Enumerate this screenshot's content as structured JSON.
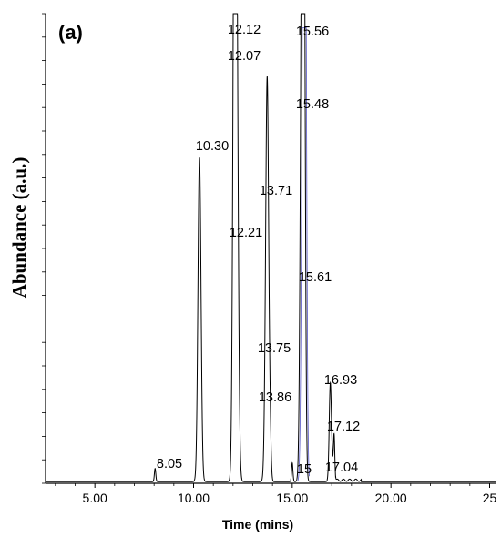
{
  "chart_data": {
    "type": "line",
    "panel_label": "(a)",
    "xlabel": "Time (mins)",
    "ylabel": "Abundance (a.u.)",
    "xlim": [
      2.5,
      25.3
    ],
    "ylim": [
      0,
      100
    ],
    "x_ticks": [
      5,
      10,
      15,
      20,
      25
    ],
    "x_tick_labels": [
      "5.00",
      "10.00",
      "15.00",
      "20.00",
      "25"
    ],
    "y_ticks_visible_labels": false,
    "peaks": [
      {
        "rt": 8.05,
        "label": "8.05",
        "height": 2.8
      },
      {
        "rt": 10.3,
        "label": "10.30",
        "height": 69
      },
      {
        "rt": 12.07,
        "label": "12.07",
        "height": 88
      },
      {
        "rt": 12.12,
        "label": "12.12",
        "height": 92
      },
      {
        "rt": 12.21,
        "label": "12.21",
        "height": 51
      },
      {
        "rt": 13.71,
        "label": "13.71",
        "height": 62
      },
      {
        "rt": 13.75,
        "label": "13.75",
        "height": 27
      },
      {
        "rt": 13.86,
        "label": "13.86",
        "height": 13
      },
      {
        "rt": 15.48,
        "label": "15.48",
        "height": 80
      },
      {
        "rt": 15.56,
        "label": "15.56",
        "height": 94
      },
      {
        "rt": 15.61,
        "label": "15.61",
        "height": 43
      },
      {
        "rt": 15.0,
        "label": "15",
        "height": 4
      },
      {
        "rt": 16.93,
        "label": "16.93",
        "height": 21
      },
      {
        "rt": 17.04,
        "label": "17.04",
        "height": 2
      },
      {
        "rt": 17.12,
        "label": "17.12",
        "height": 10
      }
    ]
  }
}
